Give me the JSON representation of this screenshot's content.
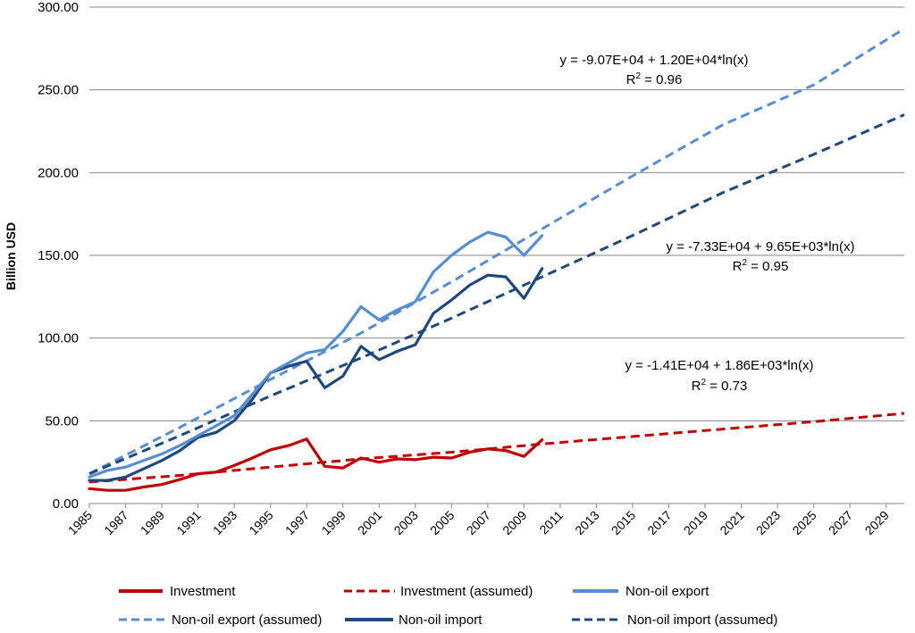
{
  "chart_data": {
    "type": "line",
    "title": "",
    "xlabel": "",
    "ylabel": "Billion USD",
    "ylim": [
      0,
      300
    ],
    "yticks": [
      "0.00",
      "50.00",
      "100.00",
      "150.00",
      "200.00",
      "250.00",
      "300.00"
    ],
    "xlim": [
      1985,
      2030
    ],
    "xticks": [
      "1985",
      "1987",
      "1989",
      "1991",
      "1993",
      "1995",
      "1997",
      "1999",
      "2001",
      "2003",
      "2005",
      "2007",
      "2009",
      "2011",
      "2013",
      "2015",
      "2017",
      "2019",
      "2021",
      "2023",
      "2025",
      "2027",
      "2029"
    ],
    "grid": "horizontal",
    "legend_position": "bottom",
    "series": [
      {
        "name": "Investment",
        "style": "solid",
        "color": "#C00000",
        "x": [
          1985,
          1986,
          1987,
          1988,
          1989,
          1990,
          1991,
          1992,
          1993,
          1994,
          1995,
          1996,
          1997,
          1998,
          1999,
          2000,
          2001,
          2002,
          2003,
          2004,
          2005,
          2006,
          2007,
          2008,
          2009,
          2010
        ],
        "values": [
          9,
          8,
          8,
          10,
          11.5,
          14.5,
          18,
          19,
          23,
          27.5,
          32.5,
          35,
          39,
          22.5,
          21.5,
          27.5,
          25,
          27,
          26.5,
          28,
          27.5,
          31,
          33,
          32,
          28.5,
          38.5
        ]
      },
      {
        "name": "Investment (assumed)",
        "style": "dashed",
        "color": "#C00000",
        "x": [
          1985,
          1990,
          1995,
          2000,
          2005,
          2010,
          2015,
          2020,
          2025,
          2030
        ],
        "values": [
          13,
          17,
          22,
          27,
          31,
          36,
          40.5,
          45,
          49.5,
          54.5
        ]
      },
      {
        "name": "Non-oil export",
        "style": "solid",
        "color": "#558ED5",
        "x": [
          1985,
          1986,
          1987,
          1988,
          1989,
          1990,
          1991,
          1992,
          1993,
          1994,
          1995,
          1996,
          1997,
          1998,
          1999,
          2000,
          2001,
          2002,
          2003,
          2004,
          2005,
          2006,
          2007,
          2008,
          2009,
          2010
        ],
        "values": [
          16,
          20,
          22,
          26,
          30,
          35,
          41,
          47,
          53,
          66,
          79,
          85,
          91,
          93,
          104,
          119,
          111,
          117,
          122,
          140,
          150,
          158,
          164,
          161,
          150,
          162
        ]
      },
      {
        "name": "Non-oil export (assumed)",
        "style": "dashed",
        "color": "#558ED5",
        "x": [
          1985,
          1990,
          1995,
          2000,
          2005,
          2010,
          2015,
          2020,
          2025,
          2030
        ],
        "values": [
          18,
          46,
          75,
          103,
          134,
          166,
          198,
          229,
          253,
          287
        ]
      },
      {
        "name": "Non-oil import",
        "style": "solid",
        "color": "#1F497D",
        "x": [
          1985,
          1986,
          1987,
          1988,
          1989,
          1990,
          1991,
          1992,
          1993,
          1994,
          1995,
          1996,
          1997,
          1998,
          1999,
          2000,
          2001,
          2002,
          2003,
          2004,
          2005,
          2006,
          2007,
          2008,
          2009,
          2010
        ],
        "values": [
          14,
          14,
          16,
          21,
          26,
          32,
          40,
          43,
          50,
          63,
          79,
          83,
          86,
          70,
          77,
          95,
          87,
          92,
          96,
          115,
          123,
          132,
          138,
          137,
          124,
          142
        ]
      },
      {
        "name": "Non-oil import (assumed)",
        "style": "dashed",
        "color": "#1F497D",
        "x": [
          1985,
          1990,
          1995,
          2000,
          2005,
          2010,
          2015,
          2020,
          2025,
          2030
        ],
        "values": [
          18,
          41,
          65,
          88,
          112,
          137,
          162,
          188,
          211,
          235
        ]
      }
    ],
    "annotations": [
      {
        "line1": "y = -9.07E+04 +  1.20E+04*ln(x)",
        "line2_base": "R",
        "line2_sup": "2",
        "line2_rest": " = 0.96"
      },
      {
        "line1": "y = -7.33E+04 +  9.65E+03*ln(x)",
        "line2_base": "R",
        "line2_sup": "2",
        "line2_rest": " = 0.95"
      },
      {
        "line1": "y = -1.41E+04 +  1.86E+03*ln(x)",
        "line2_base": "R",
        "line2_sup": "2",
        "line2_rest": " = 0.73"
      }
    ]
  }
}
